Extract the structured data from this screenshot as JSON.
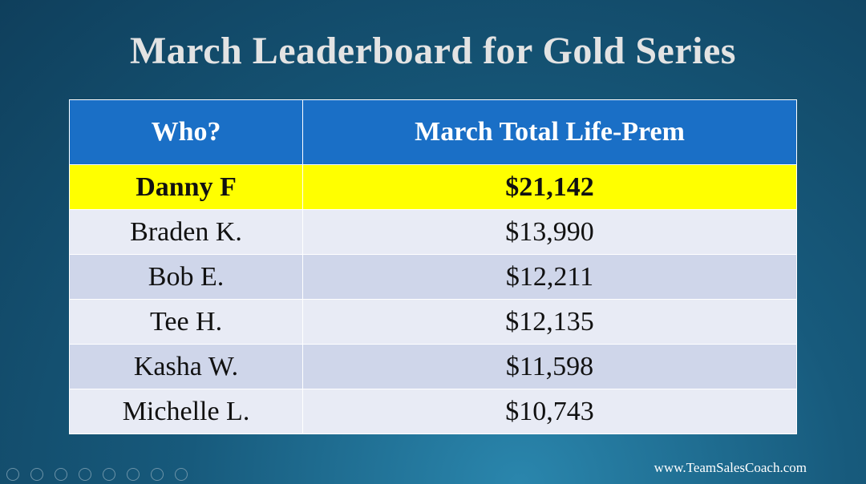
{
  "title": "March Leaderboard for Gold Series",
  "table": {
    "header": [
      "Who?",
      "March Total Life-Prem"
    ],
    "rows": [
      [
        "Danny F",
        "$21,142"
      ],
      [
        "Braden K.",
        "$13,990"
      ],
      [
        "Bob E.",
        "$12,211"
      ],
      [
        "Tee H.",
        "$12,135"
      ],
      [
        "Kasha W.",
        "$11,598"
      ],
      [
        "Michelle L.",
        "$10,743"
      ]
    ]
  },
  "footer": "www.TeamSalesCoach.com"
}
